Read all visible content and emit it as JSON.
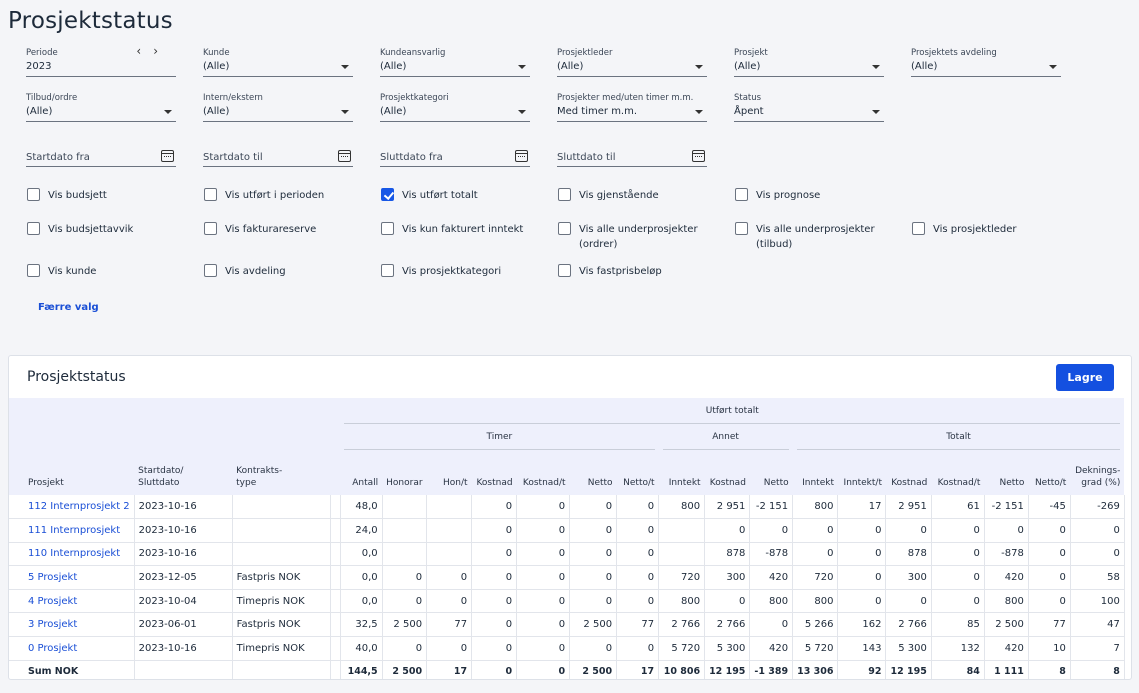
{
  "page": {
    "title": "Prosjektstatus"
  },
  "filters": {
    "periode": {
      "label": "Periode",
      "value": "2023",
      "prev": "‹",
      "next": "›"
    },
    "kunde": {
      "label": "Kunde",
      "value": "(Alle)"
    },
    "kundeansvarlig": {
      "label": "Kundeansvarlig",
      "value": "(Alle)"
    },
    "prosjektleder": {
      "label": "Prosjektleder",
      "value": "(Alle)"
    },
    "prosjekt": {
      "label": "Prosjekt",
      "value": "(Alle)"
    },
    "avdeling": {
      "label": "Prosjektets avdeling",
      "value": "(Alle)"
    },
    "tilbud": {
      "label": "Tilbud/ordre",
      "value": "(Alle)"
    },
    "intern": {
      "label": "Intern/ekstern",
      "value": "(Alle)"
    },
    "kategori": {
      "label": "Prosjektkategori",
      "value": "(Alle)"
    },
    "timer": {
      "label": "Prosjekter med/uten timer m.m.",
      "value": "Med timer m.m."
    },
    "status": {
      "label": "Status",
      "value": "Åpent"
    },
    "startdato_fra": "Startdato fra",
    "startdato_til": "Startdato til",
    "sluttdato_fra": "Sluttdato fra",
    "sluttdato_til": "Sluttdato til"
  },
  "options": {
    "budsjett": {
      "label": "Vis budsjett",
      "checked": false
    },
    "utfort_perioden": {
      "label": "Vis utført i perioden",
      "checked": false
    },
    "utfort_totalt": {
      "label": "Vis utført totalt",
      "checked": true
    },
    "gjenstaende": {
      "label": "Vis gjenstående",
      "checked": false
    },
    "prognose": {
      "label": "Vis prognose",
      "checked": false
    },
    "budsjettavvik": {
      "label": "Vis budsjettavvik",
      "checked": false
    },
    "fakturareserve": {
      "label": "Vis fakturareserve",
      "checked": false
    },
    "kun_fakturert": {
      "label": "Vis kun fakturert inntekt",
      "checked": false
    },
    "under_ordrer": {
      "label": "Vis alle underprosjekter\n(ordrer)",
      "checked": false
    },
    "under_tilbud": {
      "label": "Vis alle underprosjekter\n(tilbud)",
      "checked": false
    },
    "prosjektleder": {
      "label": "Vis prosjektleder",
      "checked": false
    },
    "kunde": {
      "label": "Vis kunde",
      "checked": false
    },
    "avdeling": {
      "label": "Vis avdeling",
      "checked": false
    },
    "prosjektkategori": {
      "label": "Vis prosjektkategori",
      "checked": false
    },
    "fastprisbelop": {
      "label": "Vis fastprisbeløp",
      "checked": false
    }
  },
  "fewer_link": "Færre valg",
  "panel": {
    "title": "Prosjektstatus",
    "save_label": "Lagre"
  },
  "table": {
    "group_top": "Utført totalt",
    "groups": {
      "timer": "Timer",
      "annet": "Annet",
      "totalt": "Totalt"
    },
    "columns": [
      "Prosjekt",
      "Startdato/\nSluttdato",
      "Kontrakts-\ntype",
      "",
      "Antall",
      "Honorar",
      "Hon/t",
      "Kostnad",
      "Kostnad/t",
      "Netto",
      "Netto/t",
      "Inntekt",
      "Kostnad",
      "Netto",
      "Inntekt",
      "Inntekt/t",
      "Kostnad",
      "Kostnad/t",
      "Netto",
      "Netto/t",
      "Deknings-\ngrad (%)"
    ],
    "rows": [
      [
        "112 Internprosjekt 2",
        "2023-10-16",
        "",
        "",
        "48,0",
        "",
        "",
        "0",
        "0",
        "0",
        "0",
        "800",
        "2 951",
        "-2 151",
        "800",
        "17",
        "2 951",
        "61",
        "-2 151",
        "-45",
        "-269"
      ],
      [
        "111 Internprosjekt",
        "2023-10-16",
        "",
        "",
        "24,0",
        "",
        "",
        "0",
        "0",
        "0",
        "0",
        "",
        "0",
        "0",
        "0",
        "0",
        "0",
        "0",
        "0",
        "0",
        "0"
      ],
      [
        "110 Internprosjekt",
        "2023-10-16",
        "",
        "",
        "0,0",
        "",
        "",
        "0",
        "0",
        "0",
        "0",
        "",
        "878",
        "-878",
        "0",
        "0",
        "878",
        "0",
        "-878",
        "0",
        "0"
      ],
      [
        "5 Prosjekt",
        "2023-12-05",
        "Fastpris NOK",
        "",
        "0,0",
        "0",
        "0",
        "0",
        "0",
        "0",
        "0",
        "720",
        "300",
        "420",
        "720",
        "0",
        "300",
        "0",
        "420",
        "0",
        "58"
      ],
      [
        "4 Prosjekt",
        "2023-10-04",
        "Timepris NOK",
        "",
        "0,0",
        "0",
        "0",
        "0",
        "0",
        "0",
        "0",
        "800",
        "0",
        "800",
        "800",
        "0",
        "0",
        "0",
        "800",
        "0",
        "100"
      ],
      [
        "3 Prosjekt",
        "2023-06-01",
        "Fastpris NOK",
        "",
        "32,5",
        "2 500",
        "77",
        "0",
        "0",
        "2 500",
        "77",
        "2 766",
        "2 766",
        "0",
        "5 266",
        "162",
        "2 766",
        "85",
        "2 500",
        "77",
        "47"
      ],
      [
        "0 Prosjekt",
        "2023-10-16",
        "Timepris NOK",
        "",
        "40,0",
        "0",
        "0",
        "0",
        "0",
        "0",
        "0",
        "5 720",
        "5 300",
        "420",
        "5 720",
        "143",
        "5 300",
        "132",
        "420",
        "10",
        "7"
      ]
    ],
    "sum": [
      "Sum NOK",
      "",
      "",
      "",
      "144,5",
      "2 500",
      "17",
      "0",
      "0",
      "2 500",
      "17",
      "10 806",
      "12 195",
      "-1 389",
      "13 306",
      "92",
      "12 195",
      "84",
      "1 111",
      "8",
      "8"
    ]
  }
}
